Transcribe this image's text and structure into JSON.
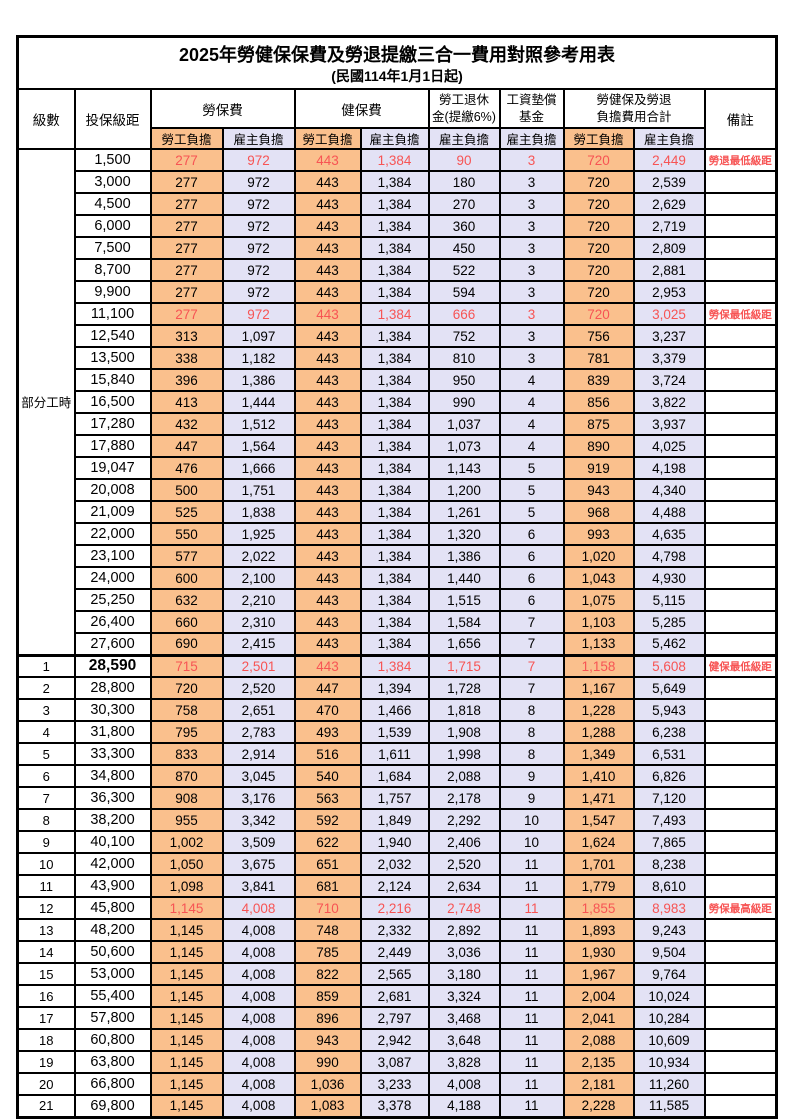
{
  "page": {
    "title": "2025年勞健保保費及勞退提繳三合一費用對照參考用表",
    "subtitle": "(民國114年1月1日起)"
  },
  "colors": {
    "employee_bg": "#fac08d",
    "employer_bg": "#e3e2f5",
    "highlight_text": "#f75454",
    "border": "#000000"
  },
  "table": {
    "columns": {
      "level": "級數",
      "bracket": "投保級距",
      "labor_insurance": "勞保費",
      "health_insurance": "健保費",
      "pension_l1": "勞工退休",
      "pension_l2": "金(提繳6%)",
      "wage_fund_l1": "工資墊償",
      "wage_fund_l2": "基金",
      "total_l1": "勞健保及勞退",
      "total_l2": "負擔費用合計",
      "remark": "備註",
      "employee_share": "勞工負擔",
      "employer_share": "雇主負擔"
    },
    "part_time_label": "部分工時",
    "part_time_rowspan": 23,
    "rows": [
      {
        "level": "",
        "bracket": "1,500",
        "values": [
          "277",
          "972",
          "443",
          "1,384",
          "90",
          "3",
          "720",
          "2,449"
        ],
        "remark": "勞退最低級距",
        "red": true
      },
      {
        "level": "",
        "bracket": "3,000",
        "values": [
          "277",
          "972",
          "443",
          "1,384",
          "180",
          "3",
          "720",
          "2,539"
        ],
        "remark": ""
      },
      {
        "level": "",
        "bracket": "4,500",
        "values": [
          "277",
          "972",
          "443",
          "1,384",
          "270",
          "3",
          "720",
          "2,629"
        ],
        "remark": ""
      },
      {
        "level": "",
        "bracket": "6,000",
        "values": [
          "277",
          "972",
          "443",
          "1,384",
          "360",
          "3",
          "720",
          "2,719"
        ],
        "remark": ""
      },
      {
        "level": "",
        "bracket": "7,500",
        "values": [
          "277",
          "972",
          "443",
          "1,384",
          "450",
          "3",
          "720",
          "2,809"
        ],
        "remark": ""
      },
      {
        "level": "",
        "bracket": "8,700",
        "values": [
          "277",
          "972",
          "443",
          "1,384",
          "522",
          "3",
          "720",
          "2,881"
        ],
        "remark": ""
      },
      {
        "level": "",
        "bracket": "9,900",
        "values": [
          "277",
          "972",
          "443",
          "1,384",
          "594",
          "3",
          "720",
          "2,953"
        ],
        "remark": ""
      },
      {
        "level": "",
        "bracket": "11,100",
        "values": [
          "277",
          "972",
          "443",
          "1,384",
          "666",
          "3",
          "720",
          "3,025"
        ],
        "remark": "勞保最低級距",
        "red": true
      },
      {
        "level": "",
        "bracket": "12,540",
        "values": [
          "313",
          "1,097",
          "443",
          "1,384",
          "752",
          "3",
          "756",
          "3,237"
        ],
        "remark": ""
      },
      {
        "level": "",
        "bracket": "13,500",
        "values": [
          "338",
          "1,182",
          "443",
          "1,384",
          "810",
          "3",
          "781",
          "3,379"
        ],
        "remark": ""
      },
      {
        "level": "",
        "bracket": "15,840",
        "values": [
          "396",
          "1,386",
          "443",
          "1,384",
          "950",
          "4",
          "839",
          "3,724"
        ],
        "remark": ""
      },
      {
        "level": "",
        "bracket": "16,500",
        "values": [
          "413",
          "1,444",
          "443",
          "1,384",
          "990",
          "4",
          "856",
          "3,822"
        ],
        "remark": ""
      },
      {
        "level": "",
        "bracket": "17,280",
        "values": [
          "432",
          "1,512",
          "443",
          "1,384",
          "1,037",
          "4",
          "875",
          "3,937"
        ],
        "remark": ""
      },
      {
        "level": "",
        "bracket": "17,880",
        "values": [
          "447",
          "1,564",
          "443",
          "1,384",
          "1,073",
          "4",
          "890",
          "4,025"
        ],
        "remark": ""
      },
      {
        "level": "",
        "bracket": "19,047",
        "values": [
          "476",
          "1,666",
          "443",
          "1,384",
          "1,143",
          "5",
          "919",
          "4,198"
        ],
        "remark": ""
      },
      {
        "level": "",
        "bracket": "20,008",
        "values": [
          "500",
          "1,751",
          "443",
          "1,384",
          "1,200",
          "5",
          "943",
          "4,340"
        ],
        "remark": ""
      },
      {
        "level": "",
        "bracket": "21,009",
        "values": [
          "525",
          "1,838",
          "443",
          "1,384",
          "1,261",
          "5",
          "968",
          "4,488"
        ],
        "remark": ""
      },
      {
        "level": "",
        "bracket": "22,000",
        "values": [
          "550",
          "1,925",
          "443",
          "1,384",
          "1,320",
          "6",
          "993",
          "4,635"
        ],
        "remark": ""
      },
      {
        "level": "",
        "bracket": "23,100",
        "values": [
          "577",
          "2,022",
          "443",
          "1,384",
          "1,386",
          "6",
          "1,020",
          "4,798"
        ],
        "remark": ""
      },
      {
        "level": "",
        "bracket": "24,000",
        "values": [
          "600",
          "2,100",
          "443",
          "1,384",
          "1,440",
          "6",
          "1,043",
          "4,930"
        ],
        "remark": ""
      },
      {
        "level": "",
        "bracket": "25,250",
        "values": [
          "632",
          "2,210",
          "443",
          "1,384",
          "1,515",
          "6",
          "1,075",
          "5,115"
        ],
        "remark": ""
      },
      {
        "level": "",
        "bracket": "26,400",
        "values": [
          "660",
          "2,310",
          "443",
          "1,384",
          "1,584",
          "7",
          "1,103",
          "5,285"
        ],
        "remark": ""
      },
      {
        "level": "",
        "bracket": "27,600",
        "values": [
          "690",
          "2,415",
          "443",
          "1,384",
          "1,656",
          "7",
          "1,133",
          "5,462"
        ],
        "remark": ""
      },
      {
        "level": "1",
        "bracket": "28,590",
        "values": [
          "715",
          "2,501",
          "443",
          "1,384",
          "1,715",
          "7",
          "1,158",
          "5,608"
        ],
        "remark": "健保最低級距",
        "red": true,
        "bracket_bold": true,
        "thick_top": true
      },
      {
        "level": "2",
        "bracket": "28,800",
        "values": [
          "720",
          "2,520",
          "447",
          "1,394",
          "1,728",
          "7",
          "1,167",
          "5,649"
        ],
        "remark": ""
      },
      {
        "level": "3",
        "bracket": "30,300",
        "values": [
          "758",
          "2,651",
          "470",
          "1,466",
          "1,818",
          "8",
          "1,228",
          "5,943"
        ],
        "remark": ""
      },
      {
        "level": "4",
        "bracket": "31,800",
        "values": [
          "795",
          "2,783",
          "493",
          "1,539",
          "1,908",
          "8",
          "1,288",
          "6,238"
        ],
        "remark": ""
      },
      {
        "level": "5",
        "bracket": "33,300",
        "values": [
          "833",
          "2,914",
          "516",
          "1,611",
          "1,998",
          "8",
          "1,349",
          "6,531"
        ],
        "remark": ""
      },
      {
        "level": "6",
        "bracket": "34,800",
        "values": [
          "870",
          "3,045",
          "540",
          "1,684",
          "2,088",
          "9",
          "1,410",
          "6,826"
        ],
        "remark": ""
      },
      {
        "level": "7",
        "bracket": "36,300",
        "values": [
          "908",
          "3,176",
          "563",
          "1,757",
          "2,178",
          "9",
          "1,471",
          "7,120"
        ],
        "remark": ""
      },
      {
        "level": "8",
        "bracket": "38,200",
        "values": [
          "955",
          "3,342",
          "592",
          "1,849",
          "2,292",
          "10",
          "1,547",
          "7,493"
        ],
        "remark": ""
      },
      {
        "level": "9",
        "bracket": "40,100",
        "values": [
          "1,002",
          "3,509",
          "622",
          "1,940",
          "2,406",
          "10",
          "1,624",
          "7,865"
        ],
        "remark": ""
      },
      {
        "level": "10",
        "bracket": "42,000",
        "values": [
          "1,050",
          "3,675",
          "651",
          "2,032",
          "2,520",
          "11",
          "1,701",
          "8,238"
        ],
        "remark": ""
      },
      {
        "level": "11",
        "bracket": "43,900",
        "values": [
          "1,098",
          "3,841",
          "681",
          "2,124",
          "2,634",
          "11",
          "1,779",
          "8,610"
        ],
        "remark": ""
      },
      {
        "level": "12",
        "bracket": "45,800",
        "values": [
          "1,145",
          "4,008",
          "710",
          "2,216",
          "2,748",
          "11",
          "1,855",
          "8,983"
        ],
        "remark": "勞保最高級距",
        "red": true
      },
      {
        "level": "13",
        "bracket": "48,200",
        "values": [
          "1,145",
          "4,008",
          "748",
          "2,332",
          "2,892",
          "11",
          "1,893",
          "9,243"
        ],
        "remark": ""
      },
      {
        "level": "14",
        "bracket": "50,600",
        "values": [
          "1,145",
          "4,008",
          "785",
          "2,449",
          "3,036",
          "11",
          "1,930",
          "9,504"
        ],
        "remark": ""
      },
      {
        "level": "15",
        "bracket": "53,000",
        "values": [
          "1,145",
          "4,008",
          "822",
          "2,565",
          "3,180",
          "11",
          "1,967",
          "9,764"
        ],
        "remark": ""
      },
      {
        "level": "16",
        "bracket": "55,400",
        "values": [
          "1,145",
          "4,008",
          "859",
          "2,681",
          "3,324",
          "11",
          "2,004",
          "10,024"
        ],
        "remark": ""
      },
      {
        "level": "17",
        "bracket": "57,800",
        "values": [
          "1,145",
          "4,008",
          "896",
          "2,797",
          "3,468",
          "11",
          "2,041",
          "10,284"
        ],
        "remark": ""
      },
      {
        "level": "18",
        "bracket": "60,800",
        "values": [
          "1,145",
          "4,008",
          "943",
          "2,942",
          "3,648",
          "11",
          "2,088",
          "10,609"
        ],
        "remark": ""
      },
      {
        "level": "19",
        "bracket": "63,800",
        "values": [
          "1,145",
          "4,008",
          "990",
          "3,087",
          "3,828",
          "11",
          "2,135",
          "10,934"
        ],
        "remark": ""
      },
      {
        "level": "20",
        "bracket": "66,800",
        "values": [
          "1,145",
          "4,008",
          "1,036",
          "3,233",
          "4,008",
          "11",
          "2,181",
          "11,260"
        ],
        "remark": ""
      },
      {
        "level": "21",
        "bracket": "69,800",
        "values": [
          "1,145",
          "4,008",
          "1,083",
          "3,378",
          "4,188",
          "11",
          "2,228",
          "11,585"
        ],
        "remark": ""
      }
    ]
  }
}
